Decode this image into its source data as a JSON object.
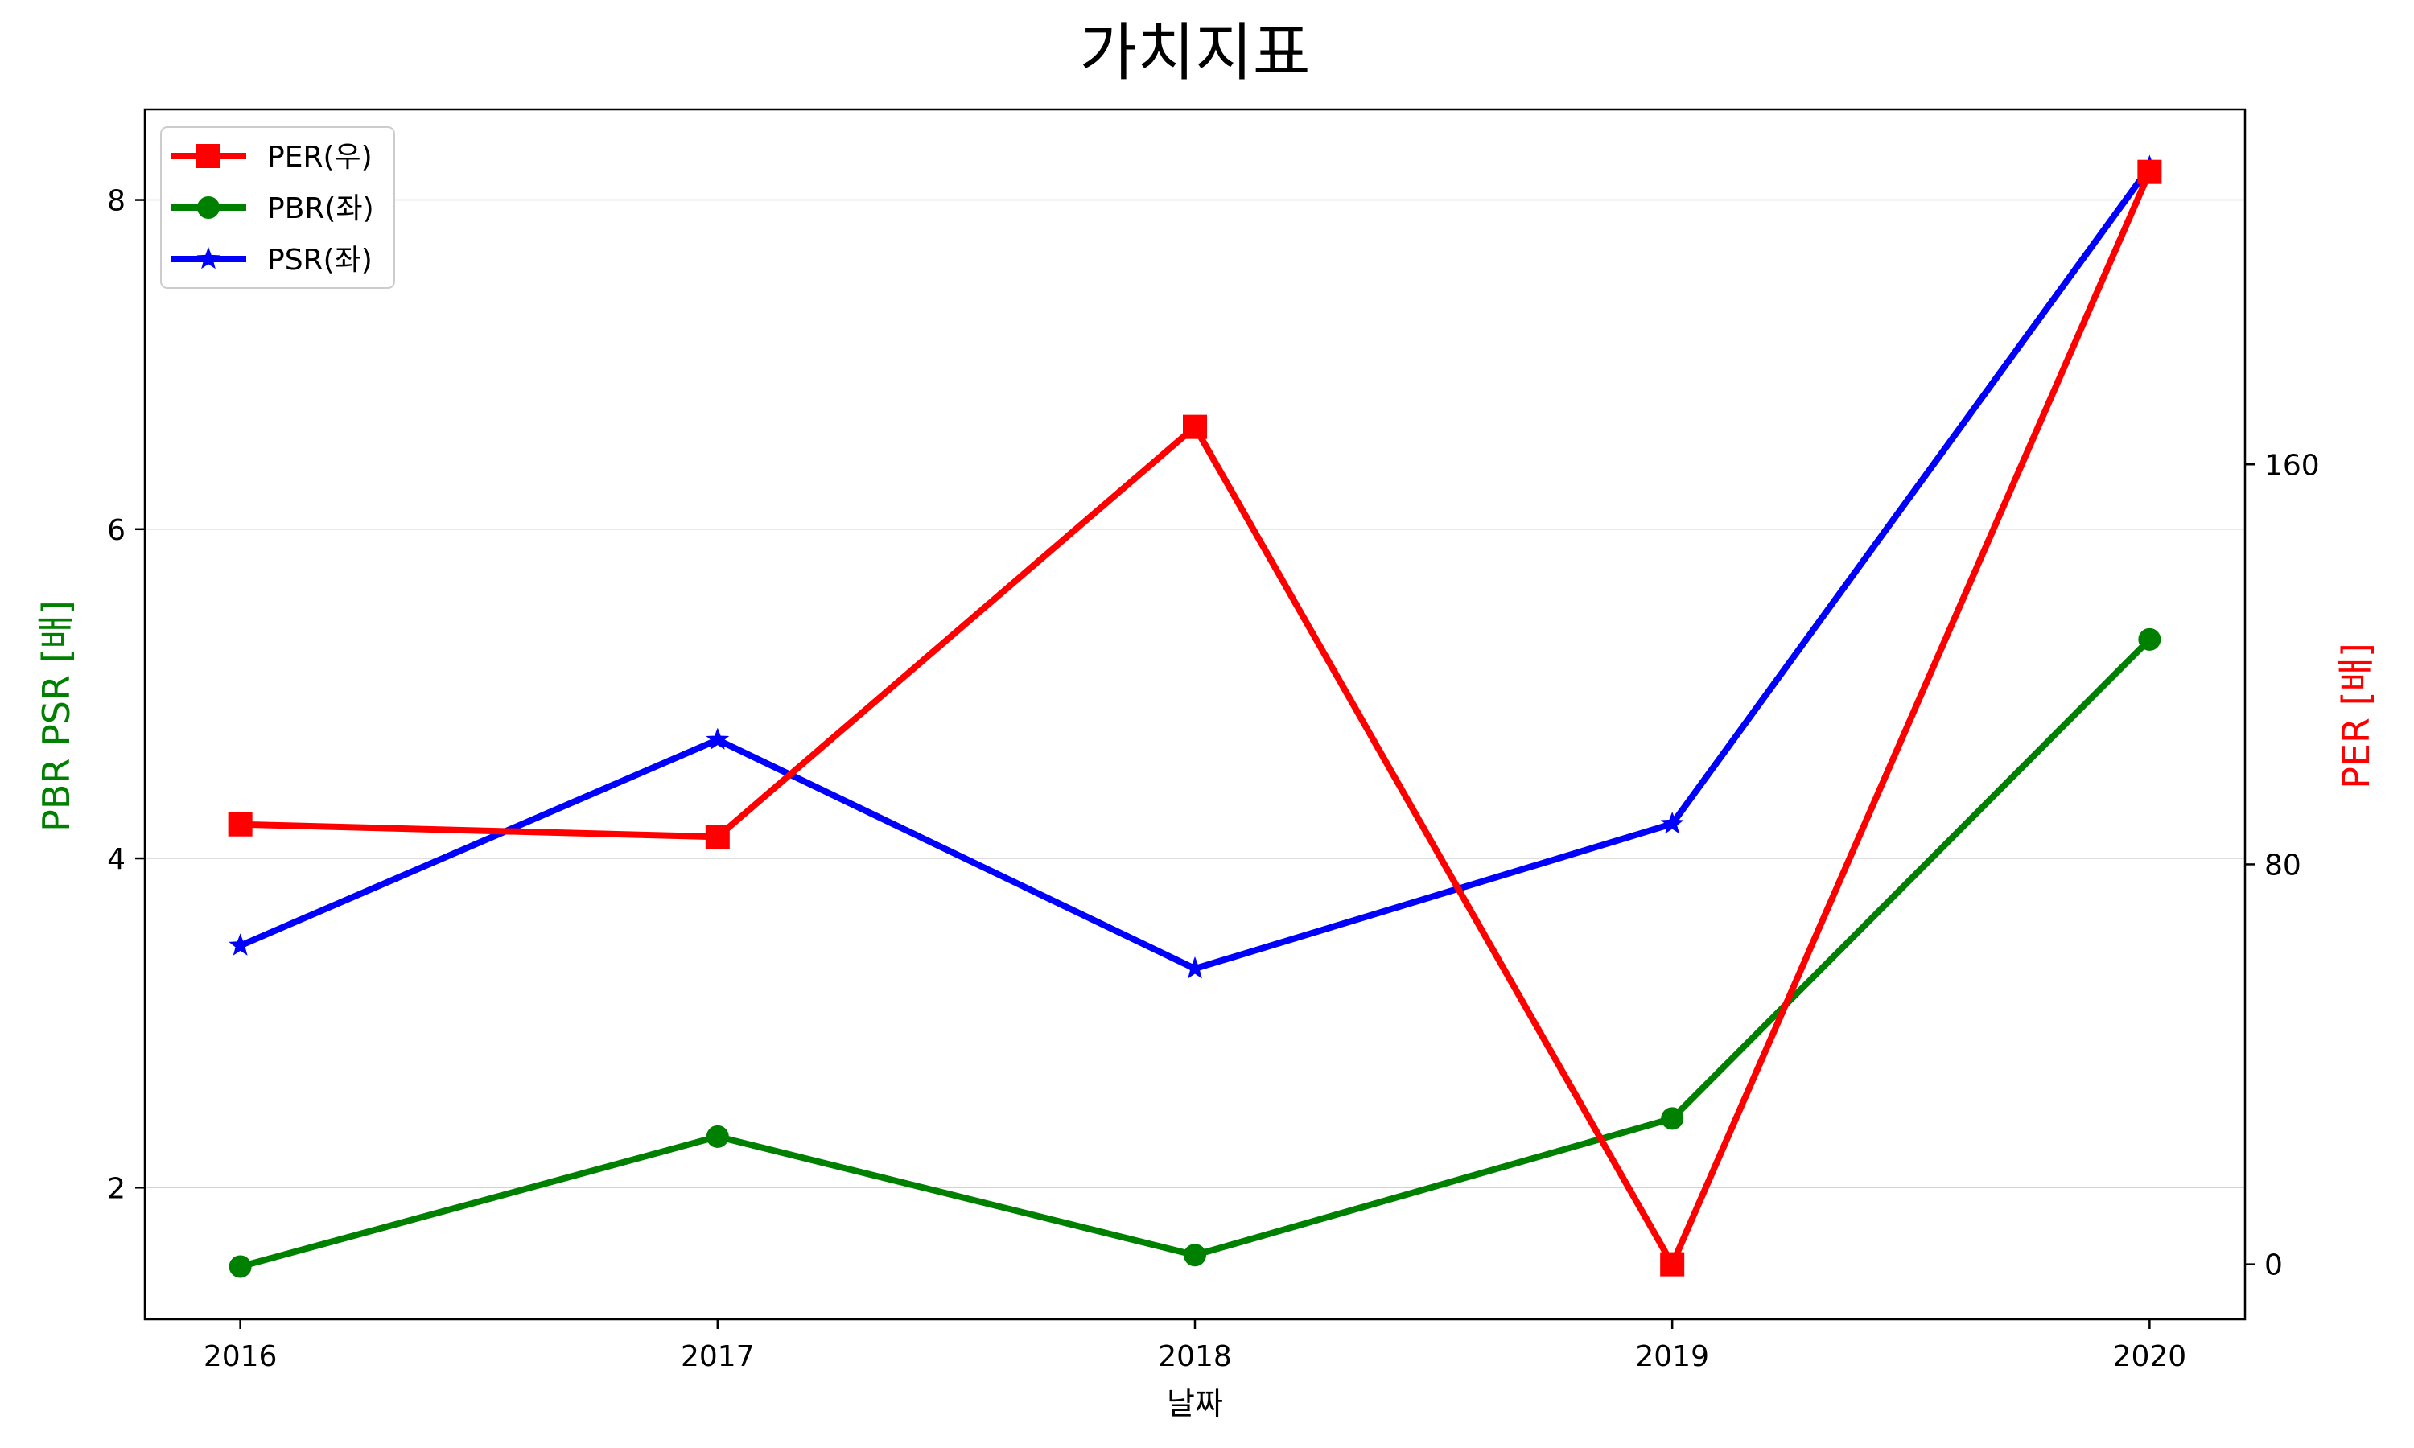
{
  "chart_data": {
    "type": "line",
    "title": "가치지표",
    "xlabel": "날짜",
    "ylabel_left": "PBR PSR [배]",
    "ylabel_right": "PER [배]",
    "x": [
      "2016",
      "2017",
      "2018",
      "2019",
      "2020"
    ],
    "xlim": [
      2015.8,
      2020.2
    ],
    "ylim_left": [
      1.2,
      8.55
    ],
    "ylim_right": [
      -11,
      231
    ],
    "yticks_left": [
      "2",
      "4",
      "6",
      "8"
    ],
    "yticks_right": [
      "0",
      "80",
      "160"
    ],
    "grid": "horizontal",
    "legend_position": "upper-left",
    "colors": {
      "left_label": "#008000",
      "right_label": "#ff0000",
      "grid": "#d3d3d3"
    },
    "series": [
      {
        "name": "PER(우)",
        "axis": "right",
        "color": "#ff0000",
        "marker": "square",
        "values": [
          88,
          85.5,
          167.5,
          0,
          218.5
        ]
      },
      {
        "name": "PBR(좌)",
        "axis": "left",
        "color": "#008000",
        "marker": "circle",
        "values": [
          1.52,
          2.31,
          1.59,
          2.42,
          5.33
        ]
      },
      {
        "name": "PSR(좌)",
        "axis": "left",
        "color": "#0000ff",
        "marker": "star",
        "values": [
          3.47,
          4.72,
          3.33,
          4.21,
          8.2
        ]
      }
    ]
  }
}
